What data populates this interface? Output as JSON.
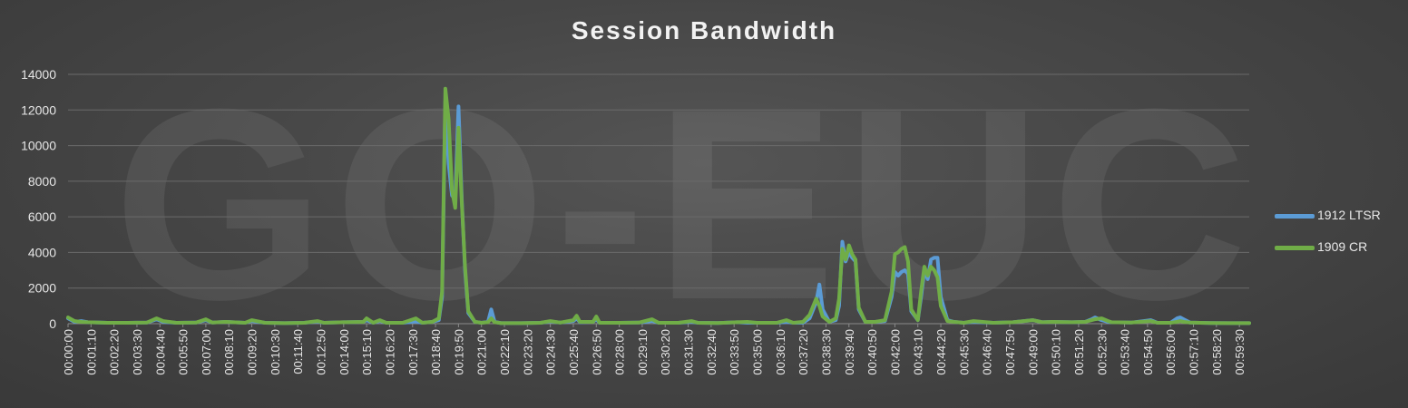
{
  "watermark": "GO-EUC",
  "chart_data": {
    "type": "line",
    "title": "Session Bandwidth",
    "xlabel": "",
    "ylabel": "",
    "ylim": [
      0,
      14000
    ],
    "yticks": [
      0,
      2000,
      4000,
      6000,
      8000,
      10000,
      12000,
      14000
    ],
    "grid": true,
    "legend_position": "right",
    "x_start": "00:00:00",
    "x_end": "01:00:00",
    "x_ticks": [
      "00:00:00",
      "00:01:10",
      "00:02:20",
      "00:03:30",
      "00:04:40",
      "00:05:50",
      "00:07:00",
      "00:08:10",
      "00:09:20",
      "00:10:30",
      "00:11:40",
      "00:12:50",
      "00:14:00",
      "00:15:10",
      "00:16:20",
      "00:17:30",
      "00:18:40",
      "00:19:50",
      "00:21:00",
      "00:22:10",
      "00:23:20",
      "00:24:30",
      "00:25:40",
      "00:26:50",
      "00:28:00",
      "00:29:10",
      "00:30:20",
      "00:31:30",
      "00:32:40",
      "00:33:50",
      "00:35:00",
      "00:36:10",
      "00:37:20",
      "00:38:30",
      "00:39:40",
      "00:40:50",
      "00:42:00",
      "00:43:10",
      "00:44:20",
      "00:45:30",
      "00:46:40",
      "00:47:50",
      "00:49:00",
      "00:50:10",
      "00:51:20",
      "00:52:30",
      "00:53:40",
      "00:54:50",
      "00:56:00",
      "00:57:10",
      "00:58:20",
      "00:59:30"
    ],
    "series": [
      {
        "name": "1912 LTSR",
        "color": "#5b9bd5",
        "points": [
          [
            "00:00:00",
            300
          ],
          [
            "00:00:20",
            100
          ],
          [
            "00:00:40",
            150
          ],
          [
            "00:01:00",
            80
          ],
          [
            "00:02:00",
            50
          ],
          [
            "00:03:00",
            50
          ],
          [
            "00:04:00",
            60
          ],
          [
            "00:04:30",
            250
          ],
          [
            "00:04:50",
            100
          ],
          [
            "00:05:30",
            50
          ],
          [
            "00:06:30",
            60
          ],
          [
            "00:07:00",
            200
          ],
          [
            "00:07:20",
            60
          ],
          [
            "00:08:00",
            100
          ],
          [
            "00:09:00",
            50
          ],
          [
            "00:09:20",
            150
          ],
          [
            "00:10:00",
            50
          ],
          [
            "00:11:00",
            30
          ],
          [
            "00:12:00",
            50
          ],
          [
            "00:12:40",
            120
          ],
          [
            "00:13:00",
            50
          ],
          [
            "00:14:00",
            80
          ],
          [
            "00:15:00",
            100
          ],
          [
            "00:15:10",
            200
          ],
          [
            "00:15:30",
            50
          ],
          [
            "00:15:50",
            150
          ],
          [
            "00:16:10",
            50
          ],
          [
            "00:17:00",
            50
          ],
          [
            "00:17:40",
            120
          ],
          [
            "00:18:00",
            50
          ],
          [
            "00:18:30",
            100
          ],
          [
            "00:18:50",
            200
          ],
          [
            "00:19:00",
            1500
          ],
          [
            "00:19:10",
            12500
          ],
          [
            "00:19:20",
            9000
          ],
          [
            "00:19:30",
            7200
          ],
          [
            "00:19:40",
            7000
          ],
          [
            "00:19:50",
            12200
          ],
          [
            "00:20:00",
            7000
          ],
          [
            "00:20:10",
            3000
          ],
          [
            "00:20:20",
            600
          ],
          [
            "00:20:40",
            100
          ],
          [
            "00:21:00",
            50
          ],
          [
            "00:21:20",
            100
          ],
          [
            "00:21:30",
            800
          ],
          [
            "00:21:40",
            100
          ],
          [
            "00:22:00",
            30
          ],
          [
            "00:23:00",
            30
          ],
          [
            "00:24:00",
            50
          ],
          [
            "00:24:30",
            120
          ],
          [
            "00:25:00",
            60
          ],
          [
            "00:25:40",
            150
          ],
          [
            "00:25:50",
            300
          ],
          [
            "00:26:00",
            80
          ],
          [
            "00:26:40",
            100
          ],
          [
            "00:26:50",
            250
          ],
          [
            "00:27:00",
            50
          ],
          [
            "00:28:00",
            50
          ],
          [
            "00:29:00",
            60
          ],
          [
            "00:29:40",
            150
          ],
          [
            "00:30:00",
            50
          ],
          [
            "00:31:00",
            50
          ],
          [
            "00:31:40",
            100
          ],
          [
            "00:32:00",
            50
          ],
          [
            "00:33:00",
            40
          ],
          [
            "00:34:00",
            80
          ],
          [
            "00:34:30",
            50
          ],
          [
            "00:35:00",
            50
          ],
          [
            "00:36:00",
            50
          ],
          [
            "00:36:30",
            100
          ],
          [
            "00:36:50",
            50
          ],
          [
            "00:37:20",
            50
          ],
          [
            "00:37:40",
            300
          ],
          [
            "00:38:00",
            1200
          ],
          [
            "00:38:10",
            2200
          ],
          [
            "00:38:20",
            800
          ],
          [
            "00:38:40",
            100
          ],
          [
            "00:39:00",
            200
          ],
          [
            "00:39:10",
            1000
          ],
          [
            "00:39:20",
            4600
          ],
          [
            "00:39:30",
            3500
          ],
          [
            "00:39:40",
            4000
          ],
          [
            "00:39:50",
            3700
          ],
          [
            "00:40:00",
            3500
          ],
          [
            "00:40:10",
            800
          ],
          [
            "00:40:30",
            100
          ],
          [
            "00:41:00",
            100
          ],
          [
            "00:41:30",
            150
          ],
          [
            "00:41:50",
            1500
          ],
          [
            "00:42:00",
            2900
          ],
          [
            "00:42:10",
            2700
          ],
          [
            "00:42:20",
            2900
          ],
          [
            "00:42:30",
            3000
          ],
          [
            "00:42:40",
            2800
          ],
          [
            "00:42:50",
            700
          ],
          [
            "00:43:10",
            200
          ],
          [
            "00:43:20",
            1500
          ],
          [
            "00:43:30",
            3000
          ],
          [
            "00:43:40",
            2500
          ],
          [
            "00:43:50",
            3600
          ],
          [
            "00:44:00",
            3700
          ],
          [
            "00:44:10",
            3700
          ],
          [
            "00:44:20",
            1500
          ],
          [
            "00:44:40",
            200
          ],
          [
            "00:45:00",
            100
          ],
          [
            "00:45:30",
            50
          ],
          [
            "00:46:00",
            100
          ],
          [
            "00:47:00",
            50
          ],
          [
            "00:48:00",
            80
          ],
          [
            "00:49:00",
            200
          ],
          [
            "00:49:30",
            80
          ],
          [
            "00:50:00",
            100
          ],
          [
            "00:51:00",
            80
          ],
          [
            "00:51:40",
            100
          ],
          [
            "00:52:00",
            250
          ],
          [
            "00:52:10",
            350
          ],
          [
            "00:52:30",
            200
          ],
          [
            "00:52:50",
            100
          ],
          [
            "00:53:00",
            80
          ],
          [
            "00:54:00",
            60
          ],
          [
            "00:55:00",
            200
          ],
          [
            "00:55:20",
            50
          ],
          [
            "00:56:00",
            50
          ],
          [
            "00:56:20",
            300
          ],
          [
            "00:56:30",
            350
          ],
          [
            "00:56:40",
            250
          ],
          [
            "00:57:00",
            60
          ],
          [
            "00:58:00",
            40
          ],
          [
            "00:59:00",
            30
          ],
          [
            "01:00:00",
            30
          ]
        ]
      },
      {
        "name": "1909 CR",
        "color": "#70ad47",
        "points": [
          [
            "00:00:00",
            350
          ],
          [
            "00:00:20",
            150
          ],
          [
            "00:00:40",
            100
          ],
          [
            "00:01:00",
            80
          ],
          [
            "00:02:00",
            50
          ],
          [
            "00:03:00",
            50
          ],
          [
            "00:04:00",
            60
          ],
          [
            "00:04:30",
            300
          ],
          [
            "00:04:50",
            150
          ],
          [
            "00:05:30",
            50
          ],
          [
            "00:06:30",
            60
          ],
          [
            "00:07:00",
            250
          ],
          [
            "00:07:20",
            60
          ],
          [
            "00:08:00",
            100
          ],
          [
            "00:09:00",
            50
          ],
          [
            "00:09:20",
            200
          ],
          [
            "00:10:00",
            50
          ],
          [
            "00:11:00",
            30
          ],
          [
            "00:12:00",
            50
          ],
          [
            "00:12:40",
            150
          ],
          [
            "00:13:00",
            50
          ],
          [
            "00:14:00",
            80
          ],
          [
            "00:15:00",
            100
          ],
          [
            "00:15:10",
            300
          ],
          [
            "00:15:30",
            50
          ],
          [
            "00:15:50",
            200
          ],
          [
            "00:16:10",
            50
          ],
          [
            "00:17:00",
            50
          ],
          [
            "00:17:40",
            300
          ],
          [
            "00:18:00",
            50
          ],
          [
            "00:18:30",
            100
          ],
          [
            "00:18:50",
            300
          ],
          [
            "00:19:00",
            1800
          ],
          [
            "00:19:10",
            13200
          ],
          [
            "00:19:20",
            11500
          ],
          [
            "00:19:30",
            7500
          ],
          [
            "00:19:40",
            6500
          ],
          [
            "00:19:50",
            11000
          ],
          [
            "00:20:00",
            6800
          ],
          [
            "00:20:10",
            3200
          ],
          [
            "00:20:20",
            700
          ],
          [
            "00:20:40",
            100
          ],
          [
            "00:21:00",
            50
          ],
          [
            "00:21:20",
            80
          ],
          [
            "00:21:30",
            300
          ],
          [
            "00:21:40",
            80
          ],
          [
            "00:22:00",
            30
          ],
          [
            "00:23:00",
            30
          ],
          [
            "00:24:00",
            50
          ],
          [
            "00:24:30",
            150
          ],
          [
            "00:25:00",
            60
          ],
          [
            "00:25:40",
            200
          ],
          [
            "00:25:50",
            450
          ],
          [
            "00:26:00",
            100
          ],
          [
            "00:26:40",
            100
          ],
          [
            "00:26:50",
            400
          ],
          [
            "00:27:00",
            50
          ],
          [
            "00:28:00",
            50
          ],
          [
            "00:29:00",
            60
          ],
          [
            "00:29:40",
            250
          ],
          [
            "00:30:00",
            50
          ],
          [
            "00:31:00",
            50
          ],
          [
            "00:31:40",
            150
          ],
          [
            "00:32:00",
            50
          ],
          [
            "00:33:00",
            40
          ],
          [
            "00:34:00",
            80
          ],
          [
            "00:34:30",
            100
          ],
          [
            "00:35:00",
            50
          ],
          [
            "00:36:00",
            50
          ],
          [
            "00:36:30",
            200
          ],
          [
            "00:36:50",
            50
          ],
          [
            "00:37:20",
            100
          ],
          [
            "00:37:40",
            500
          ],
          [
            "00:38:00",
            1400
          ],
          [
            "00:38:10",
            1000
          ],
          [
            "00:38:20",
            400
          ],
          [
            "00:38:40",
            100
          ],
          [
            "00:39:00",
            300
          ],
          [
            "00:39:10",
            1400
          ],
          [
            "00:39:20",
            4200
          ],
          [
            "00:39:30",
            3600
          ],
          [
            "00:39:40",
            4400
          ],
          [
            "00:39:50",
            3900
          ],
          [
            "00:40:00",
            3600
          ],
          [
            "00:40:10",
            900
          ],
          [
            "00:40:30",
            100
          ],
          [
            "00:41:00",
            100
          ],
          [
            "00:41:30",
            200
          ],
          [
            "00:41:50",
            1800
          ],
          [
            "00:42:00",
            3900
          ],
          [
            "00:42:10",
            4000
          ],
          [
            "00:42:20",
            4200
          ],
          [
            "00:42:30",
            4300
          ],
          [
            "00:42:40",
            3500
          ],
          [
            "00:42:50",
            800
          ],
          [
            "00:43:10",
            200
          ],
          [
            "00:43:20",
            1800
          ],
          [
            "00:43:30",
            3200
          ],
          [
            "00:43:40",
            2700
          ],
          [
            "00:43:50",
            3200
          ],
          [
            "00:44:00",
            3000
          ],
          [
            "00:44:10",
            2600
          ],
          [
            "00:44:20",
            1000
          ],
          [
            "00:44:40",
            150
          ],
          [
            "00:45:00",
            100
          ],
          [
            "00:45:30",
            50
          ],
          [
            "00:46:00",
            150
          ],
          [
            "00:47:00",
            50
          ],
          [
            "00:48:00",
            80
          ],
          [
            "00:49:00",
            200
          ],
          [
            "00:49:30",
            80
          ],
          [
            "00:50:00",
            100
          ],
          [
            "00:51:00",
            80
          ],
          [
            "00:51:40",
            100
          ],
          [
            "00:52:00",
            200
          ],
          [
            "00:52:10",
            250
          ],
          [
            "00:52:30",
            300
          ],
          [
            "00:52:50",
            150
          ],
          [
            "00:53:00",
            80
          ],
          [
            "00:54:00",
            60
          ],
          [
            "00:55:00",
            150
          ],
          [
            "00:55:20",
            50
          ],
          [
            "00:56:00",
            50
          ],
          [
            "00:56:20",
            100
          ],
          [
            "00:56:30",
            150
          ],
          [
            "00:56:40",
            100
          ],
          [
            "00:57:00",
            60
          ],
          [
            "00:58:00",
            40
          ],
          [
            "00:59:00",
            30
          ],
          [
            "01:00:00",
            30
          ]
        ]
      }
    ]
  }
}
